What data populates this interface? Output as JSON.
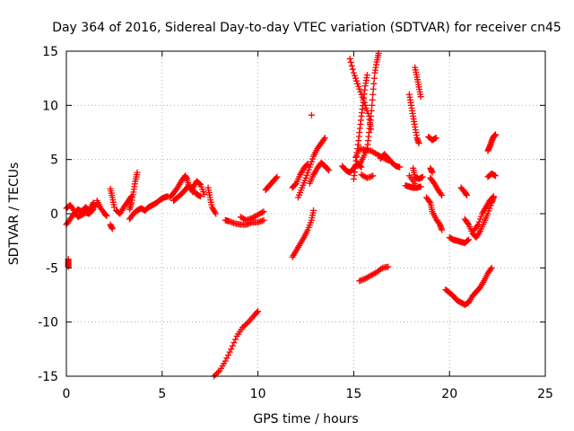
{
  "chart_data": {
    "type": "scatter",
    "title": "Day 364 of 2016, Sidereal Day-to-day VTEC variation (SDTVAR) for receiver cn45",
    "xlabel": "GPS time / hours",
    "ylabel": "SDTVAR / TECUs",
    "xlim": [
      0,
      25
    ],
    "ylim": [
      -15,
      15
    ],
    "xticks": [
      0,
      5,
      10,
      15,
      20,
      25
    ],
    "yticks": [
      -15,
      -10,
      -5,
      0,
      5,
      10,
      15
    ],
    "xtick_labels": [
      "0",
      "5",
      "10",
      "15",
      "20",
      "25"
    ],
    "ytick_labels": [
      "-15",
      "-10",
      "-5",
      "0",
      "5",
      "10",
      "15"
    ],
    "grid": true,
    "marker": "+",
    "color": "#ff0000",
    "series": [
      {
        "name": "s01",
        "points": [
          [
            0.0,
            -1.0
          ],
          [
            0.2,
            -0.5
          ],
          [
            0.4,
            0.0
          ],
          [
            0.6,
            0.4
          ],
          [
            0.8,
            0.2
          ],
          [
            1.0,
            0.6
          ],
          [
            1.2,
            0.3
          ],
          [
            1.4,
            1.0
          ],
          [
            1.5,
            0.6
          ]
        ]
      },
      {
        "name": "s02",
        "points": [
          [
            0.0,
            0.5
          ],
          [
            0.2,
            0.8
          ],
          [
            0.4,
            0.3
          ],
          [
            0.6,
            -0.3
          ],
          [
            0.8,
            -0.1
          ],
          [
            1.0,
            0.1
          ],
          [
            1.2,
            0.0
          ],
          [
            1.4,
            0.4
          ]
        ]
      },
      {
        "name": "s03",
        "points": [
          [
            0.1,
            -4.2
          ],
          [
            0.1,
            -4.6
          ],
          [
            0.1,
            -4.9
          ]
        ]
      },
      {
        "name": "s04",
        "points": [
          [
            1.6,
            1.2
          ],
          [
            1.8,
            0.5
          ],
          [
            2.0,
            0.0
          ],
          [
            2.1,
            -0.2
          ]
        ]
      },
      {
        "name": "s05",
        "points": [
          [
            2.3,
            2.3
          ],
          [
            2.4,
            1.5
          ],
          [
            2.5,
            0.6
          ]
        ]
      },
      {
        "name": "s06",
        "points": [
          [
            2.3,
            -1.0
          ],
          [
            2.4,
            -1.4
          ]
        ]
      },
      {
        "name": "s07",
        "points": [
          [
            2.6,
            0.3
          ],
          [
            2.8,
            0.0
          ],
          [
            3.0,
            0.6
          ],
          [
            3.2,
            1.1
          ],
          [
            3.4,
            1.6
          ]
        ]
      },
      {
        "name": "s08",
        "points": [
          [
            3.3,
            0.4
          ],
          [
            3.4,
            1.0
          ],
          [
            3.5,
            2.0
          ],
          [
            3.6,
            3.0
          ],
          [
            3.7,
            3.8
          ]
        ]
      },
      {
        "name": "s09",
        "points": [
          [
            3.3,
            -0.5
          ],
          [
            3.5,
            0.0
          ],
          [
            3.7,
            0.3
          ],
          [
            3.9,
            0.5
          ],
          [
            4.1,
            0.3
          ],
          [
            4.3,
            0.6
          ],
          [
            4.5,
            0.8
          ],
          [
            4.7,
            1.0
          ],
          [
            4.9,
            1.3
          ],
          [
            5.1,
            1.5
          ],
          [
            5.3,
            1.6
          ]
        ]
      },
      {
        "name": "s10",
        "points": [
          [
            5.4,
            1.5
          ],
          [
            5.6,
            1.9
          ],
          [
            5.8,
            2.4
          ],
          [
            6.0,
            3.0
          ],
          [
            6.2,
            3.5
          ],
          [
            6.3,
            3.2
          ],
          [
            6.4,
            2.5
          ],
          [
            6.6,
            2.0
          ]
        ]
      },
      {
        "name": "s11",
        "points": [
          [
            5.6,
            1.2
          ],
          [
            5.8,
            1.5
          ],
          [
            6.0,
            1.8
          ],
          [
            6.2,
            2.2
          ],
          [
            6.4,
            2.6
          ],
          [
            6.6,
            2.2
          ],
          [
            6.8,
            1.8
          ],
          [
            7.0,
            1.6
          ]
        ]
      },
      {
        "name": "s12",
        "points": [
          [
            6.6,
            2.4
          ],
          [
            6.8,
            3.0
          ],
          [
            7.0,
            2.7
          ],
          [
            7.2,
            1.8
          ]
        ]
      },
      {
        "name": "s13",
        "points": [
          [
            7.4,
            2.4
          ],
          [
            7.5,
            1.5
          ],
          [
            7.6,
            0.6
          ],
          [
            7.8,
            0.0
          ]
        ]
      },
      {
        "name": "s14",
        "points": [
          [
            8.3,
            -0.6
          ],
          [
            8.5,
            -0.7
          ],
          [
            8.8,
            -0.9
          ],
          [
            9.1,
            -1.0
          ],
          [
            9.4,
            -1.0
          ],
          [
            9.7,
            -0.8
          ],
          [
            10.0,
            -0.8
          ],
          [
            10.3,
            -0.6
          ]
        ]
      },
      {
        "name": "s15",
        "points": [
          [
            9.1,
            -0.3
          ],
          [
            9.4,
            -0.6
          ],
          [
            9.7,
            -0.4
          ],
          [
            10.0,
            -0.1
          ],
          [
            10.3,
            0.2
          ]
        ]
      },
      {
        "name": "s16",
        "points": [
          [
            7.7,
            -15.0
          ],
          [
            8.0,
            -14.5
          ],
          [
            8.3,
            -13.6
          ],
          [
            8.6,
            -12.5
          ],
          [
            8.9,
            -11.3
          ],
          [
            9.2,
            -10.5
          ],
          [
            9.5,
            -10.0
          ],
          [
            9.8,
            -9.4
          ],
          [
            10.0,
            -9.0
          ]
        ]
      },
      {
        "name": "s17",
        "points": [
          [
            10.4,
            2.2
          ],
          [
            10.6,
            2.6
          ],
          [
            10.8,
            3.0
          ],
          [
            11.0,
            3.4
          ]
        ]
      },
      {
        "name": "s18",
        "points": [
          [
            11.8,
            2.4
          ],
          [
            12.0,
            2.8
          ],
          [
            12.2,
            3.6
          ],
          [
            12.4,
            4.2
          ],
          [
            12.6,
            4.6
          ]
        ]
      },
      {
        "name": "s19",
        "points": [
          [
            11.8,
            -4.0
          ],
          [
            12.0,
            -3.4
          ],
          [
            12.2,
            -2.8
          ],
          [
            12.4,
            -2.2
          ],
          [
            12.6,
            -1.5
          ],
          [
            12.8,
            -0.6
          ],
          [
            12.9,
            0.3
          ]
        ]
      },
      {
        "name": "s20",
        "points": [
          [
            12.1,
            1.5
          ],
          [
            12.3,
            2.4
          ],
          [
            12.5,
            3.3
          ],
          [
            12.7,
            4.3
          ],
          [
            12.9,
            5.3
          ],
          [
            13.1,
            6.0
          ],
          [
            13.3,
            6.5
          ],
          [
            13.5,
            7.0
          ]
        ]
      },
      {
        "name": "s21",
        "points": [
          [
            12.8,
            9.1
          ]
        ]
      },
      {
        "name": "s22",
        "points": [
          [
            12.7,
            2.8
          ],
          [
            12.9,
            3.6
          ],
          [
            13.1,
            4.2
          ],
          [
            13.3,
            4.7
          ],
          [
            13.5,
            4.4
          ],
          [
            13.7,
            4.0
          ]
        ]
      },
      {
        "name": "s23",
        "points": [
          [
            14.4,
            4.4
          ],
          [
            14.6,
            4.0
          ],
          [
            14.8,
            3.8
          ],
          [
            15.0,
            4.2
          ],
          [
            15.2,
            4.6
          ],
          [
            15.4,
            4.3
          ]
        ]
      },
      {
        "name": "s24",
        "points": [
          [
            14.8,
            14.3
          ],
          [
            15.0,
            13.0
          ],
          [
            15.2,
            12.0
          ],
          [
            15.4,
            11.0
          ],
          [
            15.6,
            10.0
          ],
          [
            15.8,
            9.0
          ],
          [
            15.9,
            7.8
          ]
        ]
      },
      {
        "name": "s25",
        "points": [
          [
            15.0,
            3.2
          ],
          [
            15.1,
            4.5
          ],
          [
            15.2,
            6.0
          ],
          [
            15.3,
            7.5
          ],
          [
            15.4,
            9.0
          ],
          [
            15.5,
            10.3
          ],
          [
            15.6,
            11.8
          ],
          [
            15.7,
            12.8
          ]
        ]
      },
      {
        "name": "s26",
        "points": [
          [
            15.3,
            4.5
          ],
          [
            15.5,
            5.2
          ],
          [
            15.7,
            6.0
          ],
          [
            15.8,
            7.5
          ],
          [
            15.9,
            9.0
          ],
          [
            16.0,
            11.0
          ],
          [
            16.1,
            13.0
          ],
          [
            16.2,
            14.0
          ],
          [
            16.3,
            14.8
          ]
        ]
      },
      {
        "name": "s27",
        "points": [
          [
            15.1,
            5.2
          ],
          [
            15.3,
            6.0
          ],
          [
            15.6,
            5.9
          ],
          [
            15.9,
            5.8
          ],
          [
            16.2,
            5.5
          ],
          [
            16.5,
            5.2
          ],
          [
            16.8,
            4.9
          ]
        ]
      },
      {
        "name": "s28",
        "points": [
          [
            15.4,
            3.6
          ],
          [
            15.7,
            3.3
          ],
          [
            16.0,
            3.5
          ]
        ]
      },
      {
        "name": "s29",
        "points": [
          [
            16.4,
            5.1
          ],
          [
            16.6,
            5.5
          ],
          [
            16.8,
            5.1
          ],
          [
            17.0,
            4.7
          ],
          [
            17.2,
            4.4
          ],
          [
            17.4,
            4.3
          ]
        ]
      },
      {
        "name": "s30",
        "points": [
          [
            15.3,
            -6.2
          ],
          [
            15.6,
            -6.0
          ],
          [
            15.9,
            -5.7
          ],
          [
            16.2,
            -5.4
          ],
          [
            16.5,
            -5.0
          ],
          [
            16.8,
            -4.9
          ]
        ]
      },
      {
        "name": "s31",
        "points": [
          [
            17.9,
            11.0
          ],
          [
            18.0,
            10.0
          ],
          [
            18.1,
            9.0
          ],
          [
            18.2,
            8.0
          ],
          [
            18.3,
            7.0
          ],
          [
            18.4,
            6.5
          ]
        ]
      },
      {
        "name": "s32",
        "points": [
          [
            18.2,
            13.5
          ],
          [
            18.3,
            12.6
          ],
          [
            18.4,
            11.7
          ],
          [
            18.5,
            10.8
          ]
        ]
      },
      {
        "name": "s33",
        "points": [
          [
            18.1,
            4.2
          ],
          [
            18.2,
            3.4
          ],
          [
            18.4,
            3.2
          ],
          [
            18.6,
            3.4
          ]
        ]
      },
      {
        "name": "s34",
        "points": [
          [
            17.7,
            2.6
          ],
          [
            17.9,
            2.5
          ],
          [
            18.1,
            2.4
          ],
          [
            18.3,
            2.4
          ],
          [
            18.5,
            2.5
          ]
        ]
      },
      {
        "name": "s35",
        "points": [
          [
            17.9,
            3.5
          ],
          [
            18.2,
            2.8
          ]
        ]
      },
      {
        "name": "s36",
        "points": [
          [
            18.9,
            7.1
          ],
          [
            19.1,
            6.8
          ],
          [
            19.3,
            7.0
          ]
        ]
      },
      {
        "name": "s37",
        "points": [
          [
            19.0,
            4.2
          ],
          [
            19.1,
            3.8
          ]
        ]
      },
      {
        "name": "s38",
        "points": [
          [
            19.0,
            3.3
          ],
          [
            19.2,
            2.8
          ],
          [
            19.4,
            2.2
          ],
          [
            19.6,
            1.7
          ]
        ]
      },
      {
        "name": "s39",
        "points": [
          [
            18.8,
            1.5
          ],
          [
            19.0,
            1.0
          ],
          [
            19.1,
            0.2
          ],
          [
            19.3,
            -0.5
          ],
          [
            19.5,
            -1.0
          ],
          [
            19.6,
            -1.5
          ]
        ]
      },
      {
        "name": "s40",
        "points": [
          [
            19.8,
            -7.0
          ],
          [
            20.0,
            -7.3
          ],
          [
            20.2,
            -7.6
          ],
          [
            20.4,
            -8.0
          ],
          [
            20.6,
            -8.2
          ],
          [
            20.8,
            -8.4
          ],
          [
            21.0,
            -8.2
          ],
          [
            21.2,
            -7.6
          ],
          [
            21.4,
            -7.2
          ],
          [
            21.6,
            -6.8
          ],
          [
            21.8,
            -6.2
          ],
          [
            22.0,
            -5.5
          ],
          [
            22.2,
            -5.0
          ]
        ]
      },
      {
        "name": "s41",
        "points": [
          [
            20.0,
            -2.2
          ],
          [
            20.2,
            -2.4
          ],
          [
            20.4,
            -2.5
          ],
          [
            20.6,
            -2.6
          ],
          [
            20.8,
            -2.7
          ],
          [
            21.0,
            -2.4
          ]
        ]
      },
      {
        "name": "s42",
        "points": [
          [
            20.8,
            -0.5
          ],
          [
            21.0,
            -1.0
          ],
          [
            21.2,
            -1.8
          ],
          [
            21.4,
            -2.2
          ],
          [
            21.6,
            -1.6
          ],
          [
            21.8,
            -0.8
          ],
          [
            22.0,
            0.0
          ],
          [
            22.2,
            1.0
          ],
          [
            22.3,
            1.5
          ]
        ]
      },
      {
        "name": "s43",
        "points": [
          [
            21.3,
            -1.5
          ],
          [
            21.5,
            -1.0
          ],
          [
            21.7,
            0.0
          ],
          [
            21.9,
            0.6
          ],
          [
            22.1,
            1.2
          ],
          [
            22.3,
            1.6
          ]
        ]
      },
      {
        "name": "s44",
        "points": [
          [
            20.6,
            2.4
          ],
          [
            20.8,
            2.0
          ],
          [
            20.9,
            1.7
          ]
        ]
      },
      {
        "name": "s45",
        "points": [
          [
            22.0,
            5.8
          ],
          [
            22.1,
            6.2
          ],
          [
            22.2,
            6.7
          ],
          [
            22.3,
            7.1
          ],
          [
            22.4,
            7.3
          ]
        ]
      },
      {
        "name": "s46",
        "points": [
          [
            22.0,
            3.4
          ],
          [
            22.2,
            3.7
          ],
          [
            22.4,
            3.5
          ]
        ]
      }
    ]
  }
}
